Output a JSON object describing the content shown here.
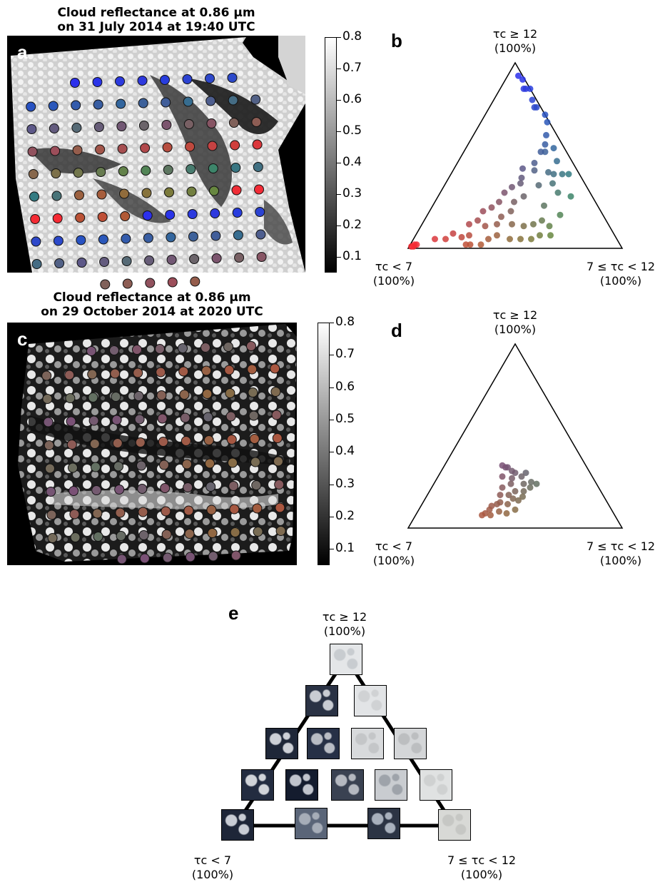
{
  "panel_a": {
    "label": "a",
    "title_line1": "Cloud reflectance at 0.86 µm",
    "title_line2": "on 31 July 2014 at 19:40 UTC"
  },
  "panel_b": {
    "label": "b"
  },
  "panel_c": {
    "label": "c",
    "title_line1": "Cloud reflectance at 0.86 µm",
    "title_line2": "on 29 October 2014 at 2020 UTC"
  },
  "panel_d": {
    "label": "d"
  },
  "panel_e": {
    "label": "e"
  },
  "triangle_labels": {
    "top_line1": "τc ≥ 12",
    "left_line1": "τc < 7",
    "right_line1": "7 ≤ τc < 12",
    "percent": "(100%)"
  },
  "colorbar": {
    "ticks": [
      "0.8",
      "0.7",
      "0.6",
      "0.5",
      "0.4",
      "0.3",
      "0.2",
      "0.1"
    ],
    "min": 0.05,
    "max": 0.8
  },
  "chart_data": [
    {
      "type": "scatter",
      "panel": "b",
      "kind": "ternary",
      "axes": [
        "τc < 7",
        "7 ≤ τc < 12",
        "τc ≥ 12"
      ],
      "note": "fractions (left, right, top) summing to 1",
      "points": [
        [
          0.02,
          0.05,
          0.93
        ],
        [
          0.01,
          0.08,
          0.91
        ],
        [
          0.02,
          0.12,
          0.86
        ],
        [
          0.03,
          0.11,
          0.86
        ],
        [
          0.0,
          0.14,
          0.86
        ],
        [
          0.02,
          0.18,
          0.8
        ],
        [
          0.03,
          0.21,
          0.76
        ],
        [
          0.02,
          0.22,
          0.76
        ],
        [
          0.0,
          0.28,
          0.72
        ],
        [
          0.01,
          0.31,
          0.68
        ],
        [
          0.05,
          0.34,
          0.61
        ],
        [
          0.08,
          0.36,
          0.56
        ],
        [
          0.05,
          0.41,
          0.54
        ],
        [
          0.1,
          0.38,
          0.52
        ],
        [
          0.12,
          0.36,
          0.52
        ],
        [
          0.07,
          0.46,
          0.47
        ],
        [
          0.18,
          0.36,
          0.46
        ],
        [
          0.14,
          0.45,
          0.41
        ],
        [
          0.2,
          0.38,
          0.42
        ],
        [
          0.25,
          0.32,
          0.43
        ],
        [
          0.28,
          0.34,
          0.38
        ],
        [
          0.22,
          0.44,
          0.34
        ],
        [
          0.3,
          0.35,
          0.35
        ],
        [
          0.35,
          0.32,
          0.33
        ],
        [
          0.32,
          0.4,
          0.28
        ],
        [
          0.4,
          0.3,
          0.3
        ],
        [
          0.38,
          0.37,
          0.25
        ],
        [
          0.45,
          0.3,
          0.25
        ],
        [
          0.42,
          0.38,
          0.2
        ],
        [
          0.48,
          0.35,
          0.17
        ],
        [
          0.5,
          0.28,
          0.22
        ],
        [
          0.55,
          0.25,
          0.2
        ],
        [
          0.52,
          0.35,
          0.13
        ],
        [
          0.58,
          0.3,
          0.12
        ],
        [
          0.6,
          0.25,
          0.15
        ],
        [
          0.65,
          0.22,
          0.13
        ],
        [
          0.68,
          0.25,
          0.07
        ],
        [
          0.72,
          0.22,
          0.06
        ],
        [
          0.75,
          0.17,
          0.08
        ],
        [
          0.8,
          0.15,
          0.05
        ],
        [
          0.85,
          0.1,
          0.05
        ],
        [
          0.45,
          0.42,
          0.13
        ],
        [
          0.4,
          0.48,
          0.12
        ],
        [
          0.35,
          0.52,
          0.13
        ],
        [
          0.3,
          0.55,
          0.15
        ],
        [
          0.28,
          0.6,
          0.12
        ],
        [
          0.2,
          0.62,
          0.18
        ],
        [
          0.25,
          0.52,
          0.23
        ],
        [
          0.15,
          0.55,
          0.3
        ],
        [
          0.1,
          0.62,
          0.28
        ],
        [
          0.08,
          0.52,
          0.4
        ],
        [
          0.12,
          0.48,
          0.4
        ],
        [
          0.05,
          0.55,
          0.4
        ],
        [
          0.15,
          0.5,
          0.35
        ],
        [
          0.55,
          0.38,
          0.07
        ],
        [
          0.6,
          0.35,
          0.05
        ],
        [
          0.5,
          0.45,
          0.05
        ],
        [
          0.45,
          0.5,
          0.05
        ],
        [
          0.4,
          0.55,
          0.05
        ],
        [
          0.35,
          0.58,
          0.07
        ],
        [
          0.3,
          0.63,
          0.07
        ],
        [
          0.95,
          0.03,
          0.02
        ],
        [
          0.96,
          0.02,
          0.02
        ],
        [
          0.97,
          0.02,
          0.01
        ],
        [
          0.98,
          0.01,
          0.01
        ],
        [
          0.7,
          0.28,
          0.02
        ],
        [
          0.72,
          0.26,
          0.02
        ],
        [
          0.65,
          0.33,
          0.02
        ]
      ]
    },
    {
      "type": "scatter",
      "panel": "d",
      "kind": "ternary",
      "axes": [
        "τc < 7",
        "7 ≤ τc < 12",
        "τc ≥ 12"
      ],
      "points": [
        [
          0.38,
          0.29,
          0.33
        ],
        [
          0.35,
          0.35,
          0.3
        ],
        [
          0.42,
          0.3,
          0.28
        ],
        [
          0.38,
          0.35,
          0.27
        ],
        [
          0.3,
          0.4,
          0.3
        ],
        [
          0.4,
          0.36,
          0.24
        ],
        [
          0.34,
          0.42,
          0.24
        ],
        [
          0.45,
          0.33,
          0.22
        ],
        [
          0.4,
          0.4,
          0.2
        ],
        [
          0.48,
          0.34,
          0.18
        ],
        [
          0.43,
          0.41,
          0.16
        ],
        [
          0.5,
          0.36,
          0.14
        ],
        [
          0.52,
          0.35,
          0.13
        ],
        [
          0.55,
          0.33,
          0.12
        ],
        [
          0.57,
          0.33,
          0.1
        ],
        [
          0.53,
          0.38,
          0.09
        ],
        [
          0.6,
          0.32,
          0.08
        ],
        [
          0.58,
          0.35,
          0.07
        ],
        [
          0.62,
          0.31,
          0.07
        ],
        [
          0.36,
          0.44,
          0.2
        ],
        [
          0.32,
          0.46,
          0.22
        ],
        [
          0.28,
          0.48,
          0.24
        ],
        [
          0.3,
          0.45,
          0.25
        ],
        [
          0.33,
          0.39,
          0.28
        ],
        [
          0.44,
          0.38,
          0.18
        ],
        [
          0.47,
          0.4,
          0.13
        ],
        [
          0.5,
          0.42,
          0.08
        ],
        [
          0.45,
          0.45,
          0.1
        ],
        [
          0.38,
          0.45,
          0.17
        ],
        [
          0.41,
          0.44,
          0.15
        ],
        [
          0.37,
          0.3,
          0.33
        ],
        [
          0.39,
          0.27,
          0.34
        ],
        [
          0.36,
          0.33,
          0.31
        ]
      ]
    }
  ]
}
